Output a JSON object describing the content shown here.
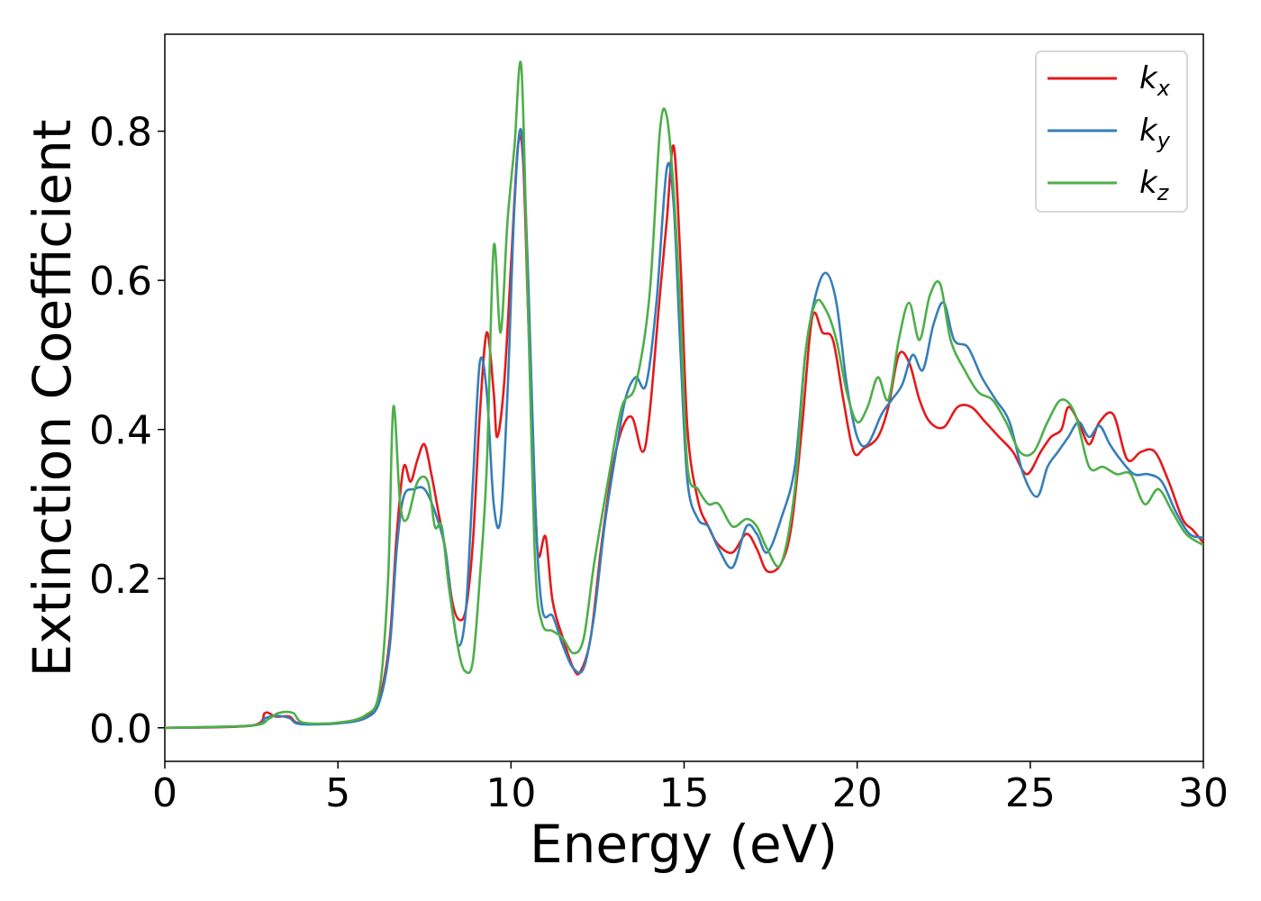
{
  "chart_data": {
    "type": "line",
    "title": "",
    "xlabel": "Energy (eV)",
    "ylabel": "Extinction Coefficient",
    "xlim": [
      0,
      30
    ],
    "ylim": [
      -0.045,
      0.93
    ],
    "xticks": [
      0,
      5,
      10,
      15,
      20,
      25,
      30
    ],
    "xtick_labels": [
      "0",
      "5",
      "10",
      "15",
      "20",
      "25",
      "30"
    ],
    "yticks": [
      0.0,
      0.2,
      0.4,
      0.6,
      0.8
    ],
    "ytick_labels": [
      "0.0",
      "0.2",
      "0.4",
      "0.6",
      "0.8"
    ],
    "grid": false,
    "legend_position": "top-right",
    "series": [
      {
        "name": "k",
        "subscript": "x",
        "color": "#e41a1c",
        "points": [
          [
            0,
            0
          ],
          [
            2.5,
            0.003
          ],
          [
            2.9,
            0.02
          ],
          [
            3.2,
            0.015
          ],
          [
            3.6,
            0.015
          ],
          [
            3.9,
            0.006
          ],
          [
            5,
            0.006
          ],
          [
            5.8,
            0.015
          ],
          [
            6.2,
            0.04
          ],
          [
            6.5,
            0.12
          ],
          [
            6.7,
            0.26
          ],
          [
            6.9,
            0.35
          ],
          [
            7.1,
            0.33
          ],
          [
            7.3,
            0.36
          ],
          [
            7.5,
            0.38
          ],
          [
            7.7,
            0.34
          ],
          [
            7.9,
            0.29
          ],
          [
            8.1,
            0.24
          ],
          [
            8.3,
            0.17
          ],
          [
            8.5,
            0.145
          ],
          [
            8.7,
            0.16
          ],
          [
            8.9,
            0.25
          ],
          [
            9.1,
            0.42
          ],
          [
            9.3,
            0.53
          ],
          [
            9.5,
            0.45
          ],
          [
            9.6,
            0.39
          ],
          [
            9.8,
            0.46
          ],
          [
            10.0,
            0.62
          ],
          [
            10.2,
            0.78
          ],
          [
            10.35,
            0.76
          ],
          [
            10.5,
            0.55
          ],
          [
            10.7,
            0.3
          ],
          [
            10.8,
            0.23
          ],
          [
            11.0,
            0.256
          ],
          [
            11.2,
            0.17
          ],
          [
            11.5,
            0.12
          ],
          [
            11.8,
            0.08
          ],
          [
            12.0,
            0.075
          ],
          [
            12.3,
            0.12
          ],
          [
            12.6,
            0.24
          ],
          [
            12.9,
            0.34
          ],
          [
            13.2,
            0.4
          ],
          [
            13.5,
            0.416
          ],
          [
            13.8,
            0.37
          ],
          [
            14.0,
            0.42
          ],
          [
            14.3,
            0.58
          ],
          [
            14.5,
            0.68
          ],
          [
            14.7,
            0.78
          ],
          [
            14.9,
            0.62
          ],
          [
            15.1,
            0.4
          ],
          [
            15.4,
            0.305
          ],
          [
            15.7,
            0.27
          ],
          [
            16.0,
            0.245
          ],
          [
            16.4,
            0.235
          ],
          [
            16.8,
            0.26
          ],
          [
            17.1,
            0.24
          ],
          [
            17.4,
            0.21
          ],
          [
            17.8,
            0.22
          ],
          [
            18.1,
            0.27
          ],
          [
            18.4,
            0.4
          ],
          [
            18.7,
            0.55
          ],
          [
            19.0,
            0.53
          ],
          [
            19.3,
            0.52
          ],
          [
            19.6,
            0.44
          ],
          [
            19.9,
            0.37
          ],
          [
            20.2,
            0.375
          ],
          [
            20.6,
            0.39
          ],
          [
            20.9,
            0.43
          ],
          [
            21.2,
            0.5
          ],
          [
            21.5,
            0.49
          ],
          [
            21.8,
            0.44
          ],
          [
            22.1,
            0.41
          ],
          [
            22.5,
            0.403
          ],
          [
            22.9,
            0.43
          ],
          [
            23.3,
            0.43
          ],
          [
            23.7,
            0.41
          ],
          [
            24.1,
            0.39
          ],
          [
            24.5,
            0.37
          ],
          [
            24.9,
            0.34
          ],
          [
            25.3,
            0.37
          ],
          [
            25.6,
            0.39
          ],
          [
            25.9,
            0.4
          ],
          [
            26.1,
            0.43
          ],
          [
            26.4,
            0.41
          ],
          [
            26.7,
            0.38
          ],
          [
            27.0,
            0.41
          ],
          [
            27.4,
            0.42
          ],
          [
            27.8,
            0.36
          ],
          [
            28.2,
            0.37
          ],
          [
            28.6,
            0.37
          ],
          [
            29.0,
            0.33
          ],
          [
            29.4,
            0.28
          ],
          [
            29.7,
            0.265
          ],
          [
            30.0,
            0.248
          ]
        ]
      },
      {
        "name": "k",
        "subscript": "y",
        "color": "#377eb8",
        "points": [
          [
            0,
            0
          ],
          [
            2.5,
            0.003
          ],
          [
            2.9,
            0.013
          ],
          [
            3.2,
            0.016
          ],
          [
            3.6,
            0.013
          ],
          [
            3.9,
            0.005
          ],
          [
            5,
            0.006
          ],
          [
            5.8,
            0.013
          ],
          [
            6.2,
            0.035
          ],
          [
            6.5,
            0.11
          ],
          [
            6.7,
            0.24
          ],
          [
            6.9,
            0.31
          ],
          [
            7.2,
            0.32
          ],
          [
            7.5,
            0.32
          ],
          [
            7.8,
            0.29
          ],
          [
            8.1,
            0.24
          ],
          [
            8.3,
            0.16
          ],
          [
            8.5,
            0.11
          ],
          [
            8.7,
            0.16
          ],
          [
            8.9,
            0.33
          ],
          [
            9.1,
            0.49
          ],
          [
            9.3,
            0.45
          ],
          [
            9.5,
            0.3
          ],
          [
            9.7,
            0.28
          ],
          [
            9.9,
            0.45
          ],
          [
            10.1,
            0.7
          ],
          [
            10.3,
            0.8
          ],
          [
            10.5,
            0.6
          ],
          [
            10.7,
            0.3
          ],
          [
            10.9,
            0.16
          ],
          [
            11.2,
            0.15
          ],
          [
            11.5,
            0.11
          ],
          [
            11.8,
            0.08
          ],
          [
            12.1,
            0.08
          ],
          [
            12.4,
            0.15
          ],
          [
            12.7,
            0.27
          ],
          [
            13.0,
            0.36
          ],
          [
            13.3,
            0.44
          ],
          [
            13.6,
            0.47
          ],
          [
            13.9,
            0.46
          ],
          [
            14.2,
            0.57
          ],
          [
            14.5,
            0.75
          ],
          [
            14.7,
            0.7
          ],
          [
            14.9,
            0.5
          ],
          [
            15.1,
            0.33
          ],
          [
            15.4,
            0.28
          ],
          [
            15.7,
            0.27
          ],
          [
            16.0,
            0.24
          ],
          [
            16.4,
            0.215
          ],
          [
            16.8,
            0.27
          ],
          [
            17.1,
            0.26
          ],
          [
            17.4,
            0.235
          ],
          [
            17.8,
            0.28
          ],
          [
            18.2,
            0.35
          ],
          [
            18.5,
            0.5
          ],
          [
            18.8,
            0.58
          ],
          [
            19.1,
            0.61
          ],
          [
            19.4,
            0.57
          ],
          [
            19.7,
            0.46
          ],
          [
            20.0,
            0.39
          ],
          [
            20.3,
            0.38
          ],
          [
            20.7,
            0.42
          ],
          [
            21.0,
            0.44
          ],
          [
            21.3,
            0.46
          ],
          [
            21.6,
            0.5
          ],
          [
            21.9,
            0.48
          ],
          [
            22.2,
            0.54
          ],
          [
            22.5,
            0.57
          ],
          [
            22.8,
            0.52
          ],
          [
            23.2,
            0.51
          ],
          [
            23.6,
            0.47
          ],
          [
            24.0,
            0.44
          ],
          [
            24.4,
            0.41
          ],
          [
            24.8,
            0.34
          ],
          [
            25.2,
            0.31
          ],
          [
            25.5,
            0.35
          ],
          [
            25.8,
            0.37
          ],
          [
            26.1,
            0.39
          ],
          [
            26.4,
            0.41
          ],
          [
            26.7,
            0.39
          ],
          [
            27.0,
            0.405
          ],
          [
            27.3,
            0.38
          ],
          [
            27.6,
            0.36
          ],
          [
            28.0,
            0.34
          ],
          [
            28.4,
            0.34
          ],
          [
            28.8,
            0.33
          ],
          [
            29.2,
            0.29
          ],
          [
            29.6,
            0.26
          ],
          [
            30.0,
            0.255
          ]
        ]
      },
      {
        "name": "k",
        "subscript": "z",
        "color": "#4daf4a",
        "points": [
          [
            0,
            0
          ],
          [
            2.5,
            0.003
          ],
          [
            3.0,
            0.012
          ],
          [
            3.3,
            0.02
          ],
          [
            3.7,
            0.02
          ],
          [
            4.0,
            0.007
          ],
          [
            5,
            0.007
          ],
          [
            5.8,
            0.017
          ],
          [
            6.2,
            0.05
          ],
          [
            6.45,
            0.2
          ],
          [
            6.6,
            0.43
          ],
          [
            6.8,
            0.3
          ],
          [
            7.0,
            0.28
          ],
          [
            7.3,
            0.33
          ],
          [
            7.6,
            0.33
          ],
          [
            7.8,
            0.27
          ],
          [
            8.0,
            0.27
          ],
          [
            8.2,
            0.19
          ],
          [
            8.5,
            0.1
          ],
          [
            8.7,
            0.075
          ],
          [
            8.9,
            0.09
          ],
          [
            9.1,
            0.2
          ],
          [
            9.3,
            0.35
          ],
          [
            9.5,
            0.645
          ],
          [
            9.7,
            0.53
          ],
          [
            9.9,
            0.68
          ],
          [
            10.1,
            0.78
          ],
          [
            10.3,
            0.885
          ],
          [
            10.5,
            0.55
          ],
          [
            10.7,
            0.22
          ],
          [
            10.9,
            0.14
          ],
          [
            11.2,
            0.13
          ],
          [
            11.5,
            0.12
          ],
          [
            11.8,
            0.1
          ],
          [
            12.1,
            0.12
          ],
          [
            12.4,
            0.22
          ],
          [
            12.8,
            0.33
          ],
          [
            13.2,
            0.43
          ],
          [
            13.6,
            0.46
          ],
          [
            14.0,
            0.58
          ],
          [
            14.3,
            0.8
          ],
          [
            14.5,
            0.82
          ],
          [
            14.7,
            0.72
          ],
          [
            14.9,
            0.55
          ],
          [
            15.1,
            0.35
          ],
          [
            15.4,
            0.32
          ],
          [
            15.7,
            0.3
          ],
          [
            16.0,
            0.3
          ],
          [
            16.4,
            0.27
          ],
          [
            16.8,
            0.28
          ],
          [
            17.1,
            0.27
          ],
          [
            17.4,
            0.24
          ],
          [
            17.8,
            0.22
          ],
          [
            18.2,
            0.32
          ],
          [
            18.5,
            0.5
          ],
          [
            18.8,
            0.57
          ],
          [
            19.1,
            0.56
          ],
          [
            19.4,
            0.52
          ],
          [
            19.7,
            0.45
          ],
          [
            20.0,
            0.41
          ],
          [
            20.3,
            0.43
          ],
          [
            20.6,
            0.47
          ],
          [
            20.9,
            0.44
          ],
          [
            21.2,
            0.52
          ],
          [
            21.5,
            0.57
          ],
          [
            21.8,
            0.52
          ],
          [
            22.1,
            0.58
          ],
          [
            22.4,
            0.595
          ],
          [
            22.7,
            0.52
          ],
          [
            23.1,
            0.48
          ],
          [
            23.5,
            0.45
          ],
          [
            23.9,
            0.44
          ],
          [
            24.3,
            0.41
          ],
          [
            24.7,
            0.37
          ],
          [
            25.1,
            0.37
          ],
          [
            25.5,
            0.41
          ],
          [
            25.9,
            0.44
          ],
          [
            26.3,
            0.42
          ],
          [
            26.7,
            0.35
          ],
          [
            27.1,
            0.35
          ],
          [
            27.5,
            0.34
          ],
          [
            27.9,
            0.34
          ],
          [
            28.3,
            0.3
          ],
          [
            28.7,
            0.32
          ],
          [
            29.1,
            0.29
          ],
          [
            29.5,
            0.26
          ],
          [
            30.0,
            0.245
          ]
        ]
      }
    ]
  }
}
